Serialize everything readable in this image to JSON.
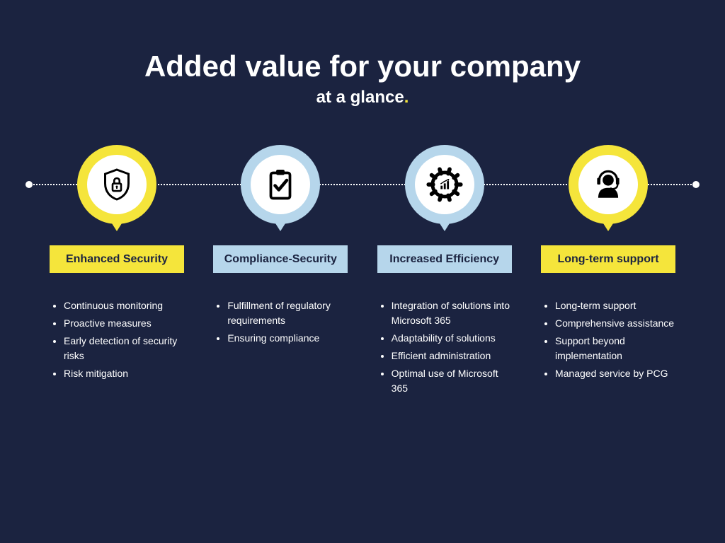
{
  "background_color": "#1b2340",
  "colors": {
    "yellow": "#f5e53b",
    "lightblue": "#b6d6eb",
    "white": "#ffffff",
    "icon": "#000000",
    "text_dark": "#1b2340"
  },
  "header": {
    "title": "Added value for your company",
    "subtitle": "at a glance"
  },
  "columns": [
    {
      "icon": "shield-lock",
      "ring_color": "#f5e53b",
      "label": "Enhanced Security",
      "label_bg": "#f5e53b",
      "bullets": [
        "Continuous monitoring",
        "Proactive measures",
        "Early detection of security risks",
        "Risk mitigation"
      ]
    },
    {
      "icon": "clipboard-check",
      "ring_color": "#b6d6eb",
      "label": "Compliance-Security",
      "label_bg": "#b6d6eb",
      "bullets": [
        "Fulfillment of regulatory requirements",
        "Ensuring compliance"
      ]
    },
    {
      "icon": "gear-chart",
      "ring_color": "#b6d6eb",
      "label": "Increased Efficiency",
      "label_bg": "#b6d6eb",
      "bullets": [
        "Integration of solutions into Microsoft 365",
        "Adaptability of solutions",
        "Efficient administration",
        "Optimal use of Microsoft 365"
      ]
    },
    {
      "icon": "headset-person",
      "ring_color": "#f5e53b",
      "label": "Long-term support",
      "label_bg": "#f5e53b",
      "bullets": [
        "Long-term support",
        "Comprehensive assistance",
        "Support beyond implementation",
        "Managed service by PCG"
      ]
    }
  ]
}
